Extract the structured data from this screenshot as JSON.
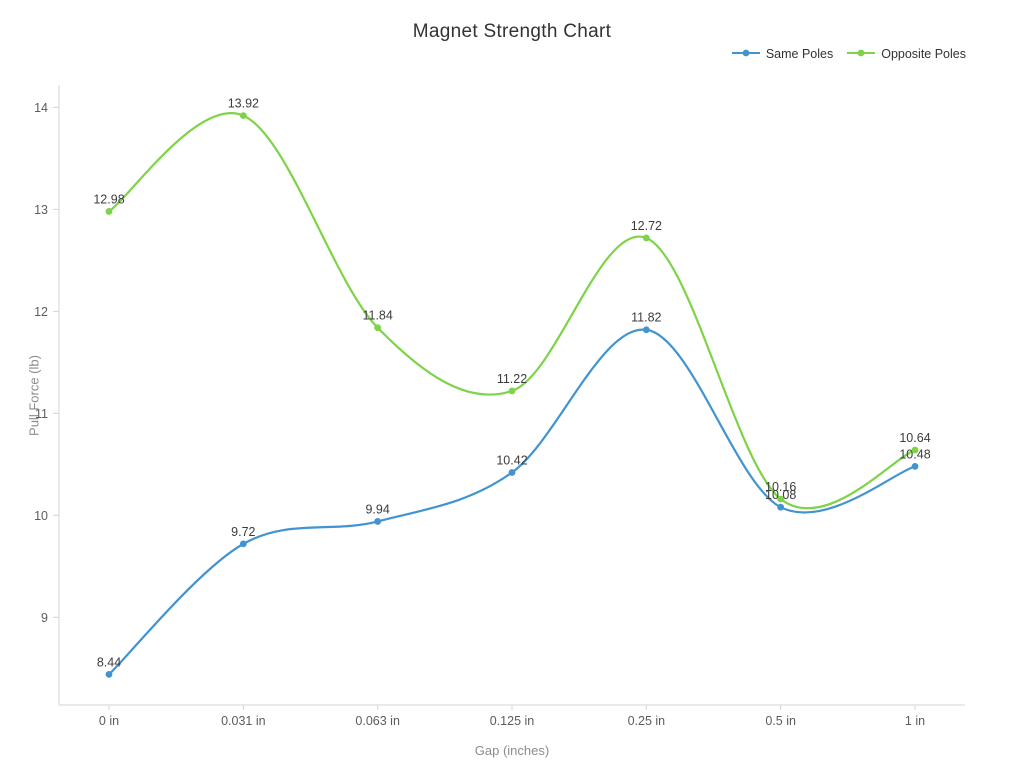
{
  "title": "Magnet Strength Chart",
  "legend": {
    "position": "top-right",
    "items": [
      {
        "label": "Same Poles",
        "color": "#4194d0"
      },
      {
        "label": "Opposite Poles",
        "color": "#7ed348"
      }
    ]
  },
  "chart_data": {
    "type": "line",
    "title": "Magnet Strength Chart",
    "categories": [
      "0 in",
      "0.031 in",
      "0.063 in",
      "0.125 in",
      "0.25 in",
      "0.5 in",
      "1 in"
    ],
    "series": [
      {
        "name": "Same Poles",
        "color": "#4194d0",
        "values": [
          8.44,
          9.72,
          9.94,
          10.42,
          11.82,
          10.08,
          10.48
        ]
      },
      {
        "name": "Opposite Poles",
        "color": "#7ed348",
        "values": [
          12.98,
          13.92,
          11.84,
          11.22,
          12.72,
          10.16,
          10.64
        ]
      }
    ],
    "xlabel": "Gap (inches)",
    "ylabel": "Pull Force (lb)",
    "y_ticks": [
      9,
      10,
      11,
      12,
      13,
      14
    ],
    "ylim": [
      8.14,
      14.22
    ],
    "smooth": true,
    "point_labels": true,
    "grid": false,
    "legend_position": "top-right"
  },
  "colors": {
    "background": "#ffffff",
    "axis_line": "#d4d4d4",
    "tick_label": "#5c5c5c",
    "axis_title": "#8c8c8c",
    "point_label": "#3c3c3c",
    "title": "#333333"
  }
}
